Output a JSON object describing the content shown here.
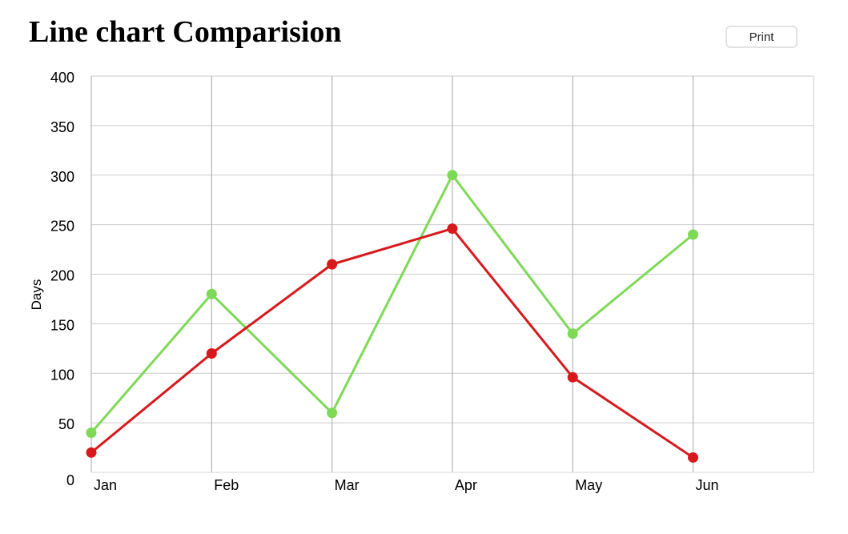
{
  "header": {
    "title": "Line chart Comparision",
    "print_label": "Print"
  },
  "chart_data": {
    "type": "line",
    "title": "",
    "xlabel": "",
    "ylabel": "Days",
    "categories": [
      "Jan",
      "Feb",
      "Mar",
      "Apr",
      "May",
      "Jun"
    ],
    "ylim": [
      0,
      400
    ],
    "yticks": [
      0,
      50,
      100,
      150,
      200,
      250,
      300,
      350,
      400
    ],
    "grid": true,
    "legend": "none",
    "series": [
      {
        "color": "#7ed957",
        "values": [
          40,
          180,
          60,
          300,
          140,
          240
        ]
      },
      {
        "color": "#d7191c",
        "values": [
          20,
          120,
          210,
          246,
          96,
          15
        ]
      }
    ]
  }
}
